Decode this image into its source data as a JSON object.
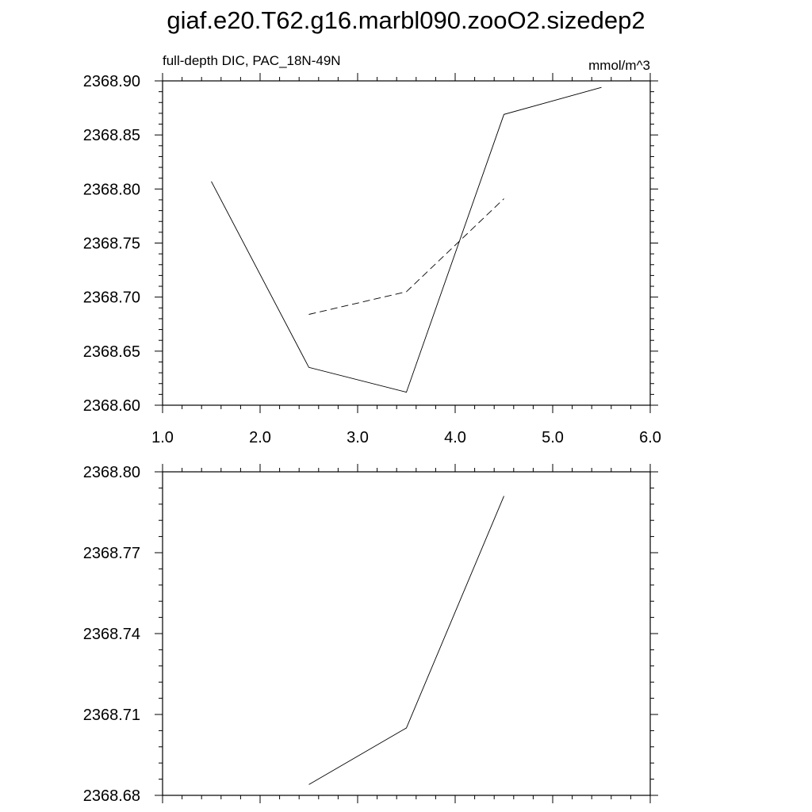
{
  "page": {
    "title": "giaf.e20.T62.g16.marbl090.zooO2.sizedep2"
  },
  "chart_data": [
    {
      "type": "line",
      "left_label": "full-depth DIC, PAC_18N-49N",
      "right_label": "mmol/m^3",
      "xlim": [
        1.0,
        6.0
      ],
      "ylim": [
        2368.6,
        2368.9
      ],
      "xticks": [
        "1.0",
        "2.0",
        "3.0",
        "4.0",
        "5.0",
        "6.0"
      ],
      "yticks": [
        "2368.90",
        "2368.85",
        "2368.80",
        "2368.75",
        "2368.70",
        "2368.65",
        "2368.60"
      ],
      "grid": false,
      "series": [
        {
          "style": "solid",
          "x": [
            1.5,
            2.5,
            3.5,
            4.5,
            5.5
          ],
          "y": [
            2368.807,
            2368.635,
            2368.612,
            2368.869,
            2368.894
          ]
        },
        {
          "style": "dashed",
          "x": [
            2.5,
            3.5,
            4.5
          ],
          "y": [
            2368.684,
            2368.705,
            2368.791
          ]
        }
      ]
    },
    {
      "type": "line",
      "xlim": [
        1.0,
        6.0
      ],
      "ylim": [
        2368.68,
        2368.8
      ],
      "yticks": [
        "2368.80",
        "2368.77",
        "2368.74",
        "2368.71",
        "2368.68"
      ],
      "grid": false,
      "series": [
        {
          "style": "solid",
          "x": [
            2.5,
            3.5,
            4.5
          ],
          "y": [
            2368.684,
            2368.705,
            2368.791
          ]
        }
      ]
    }
  ]
}
